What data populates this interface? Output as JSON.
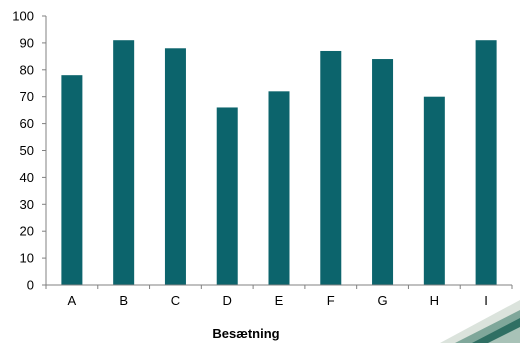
{
  "chart_data": {
    "type": "bar",
    "categories": [
      "A",
      "B",
      "C",
      "D",
      "E",
      "F",
      "G",
      "H",
      "I"
    ],
    "values": [
      78,
      91,
      88,
      66,
      72,
      87,
      84,
      70,
      91
    ],
    "xlabel": "Besætning",
    "ylabel": "",
    "ylim": [
      0,
      100
    ],
    "yticks": [
      0,
      10,
      20,
      30,
      40,
      50,
      60,
      70,
      80,
      90,
      100
    ],
    "grid": false,
    "legend": "none",
    "bar_color": "#0c646c",
    "axis_color": "#808080"
  }
}
